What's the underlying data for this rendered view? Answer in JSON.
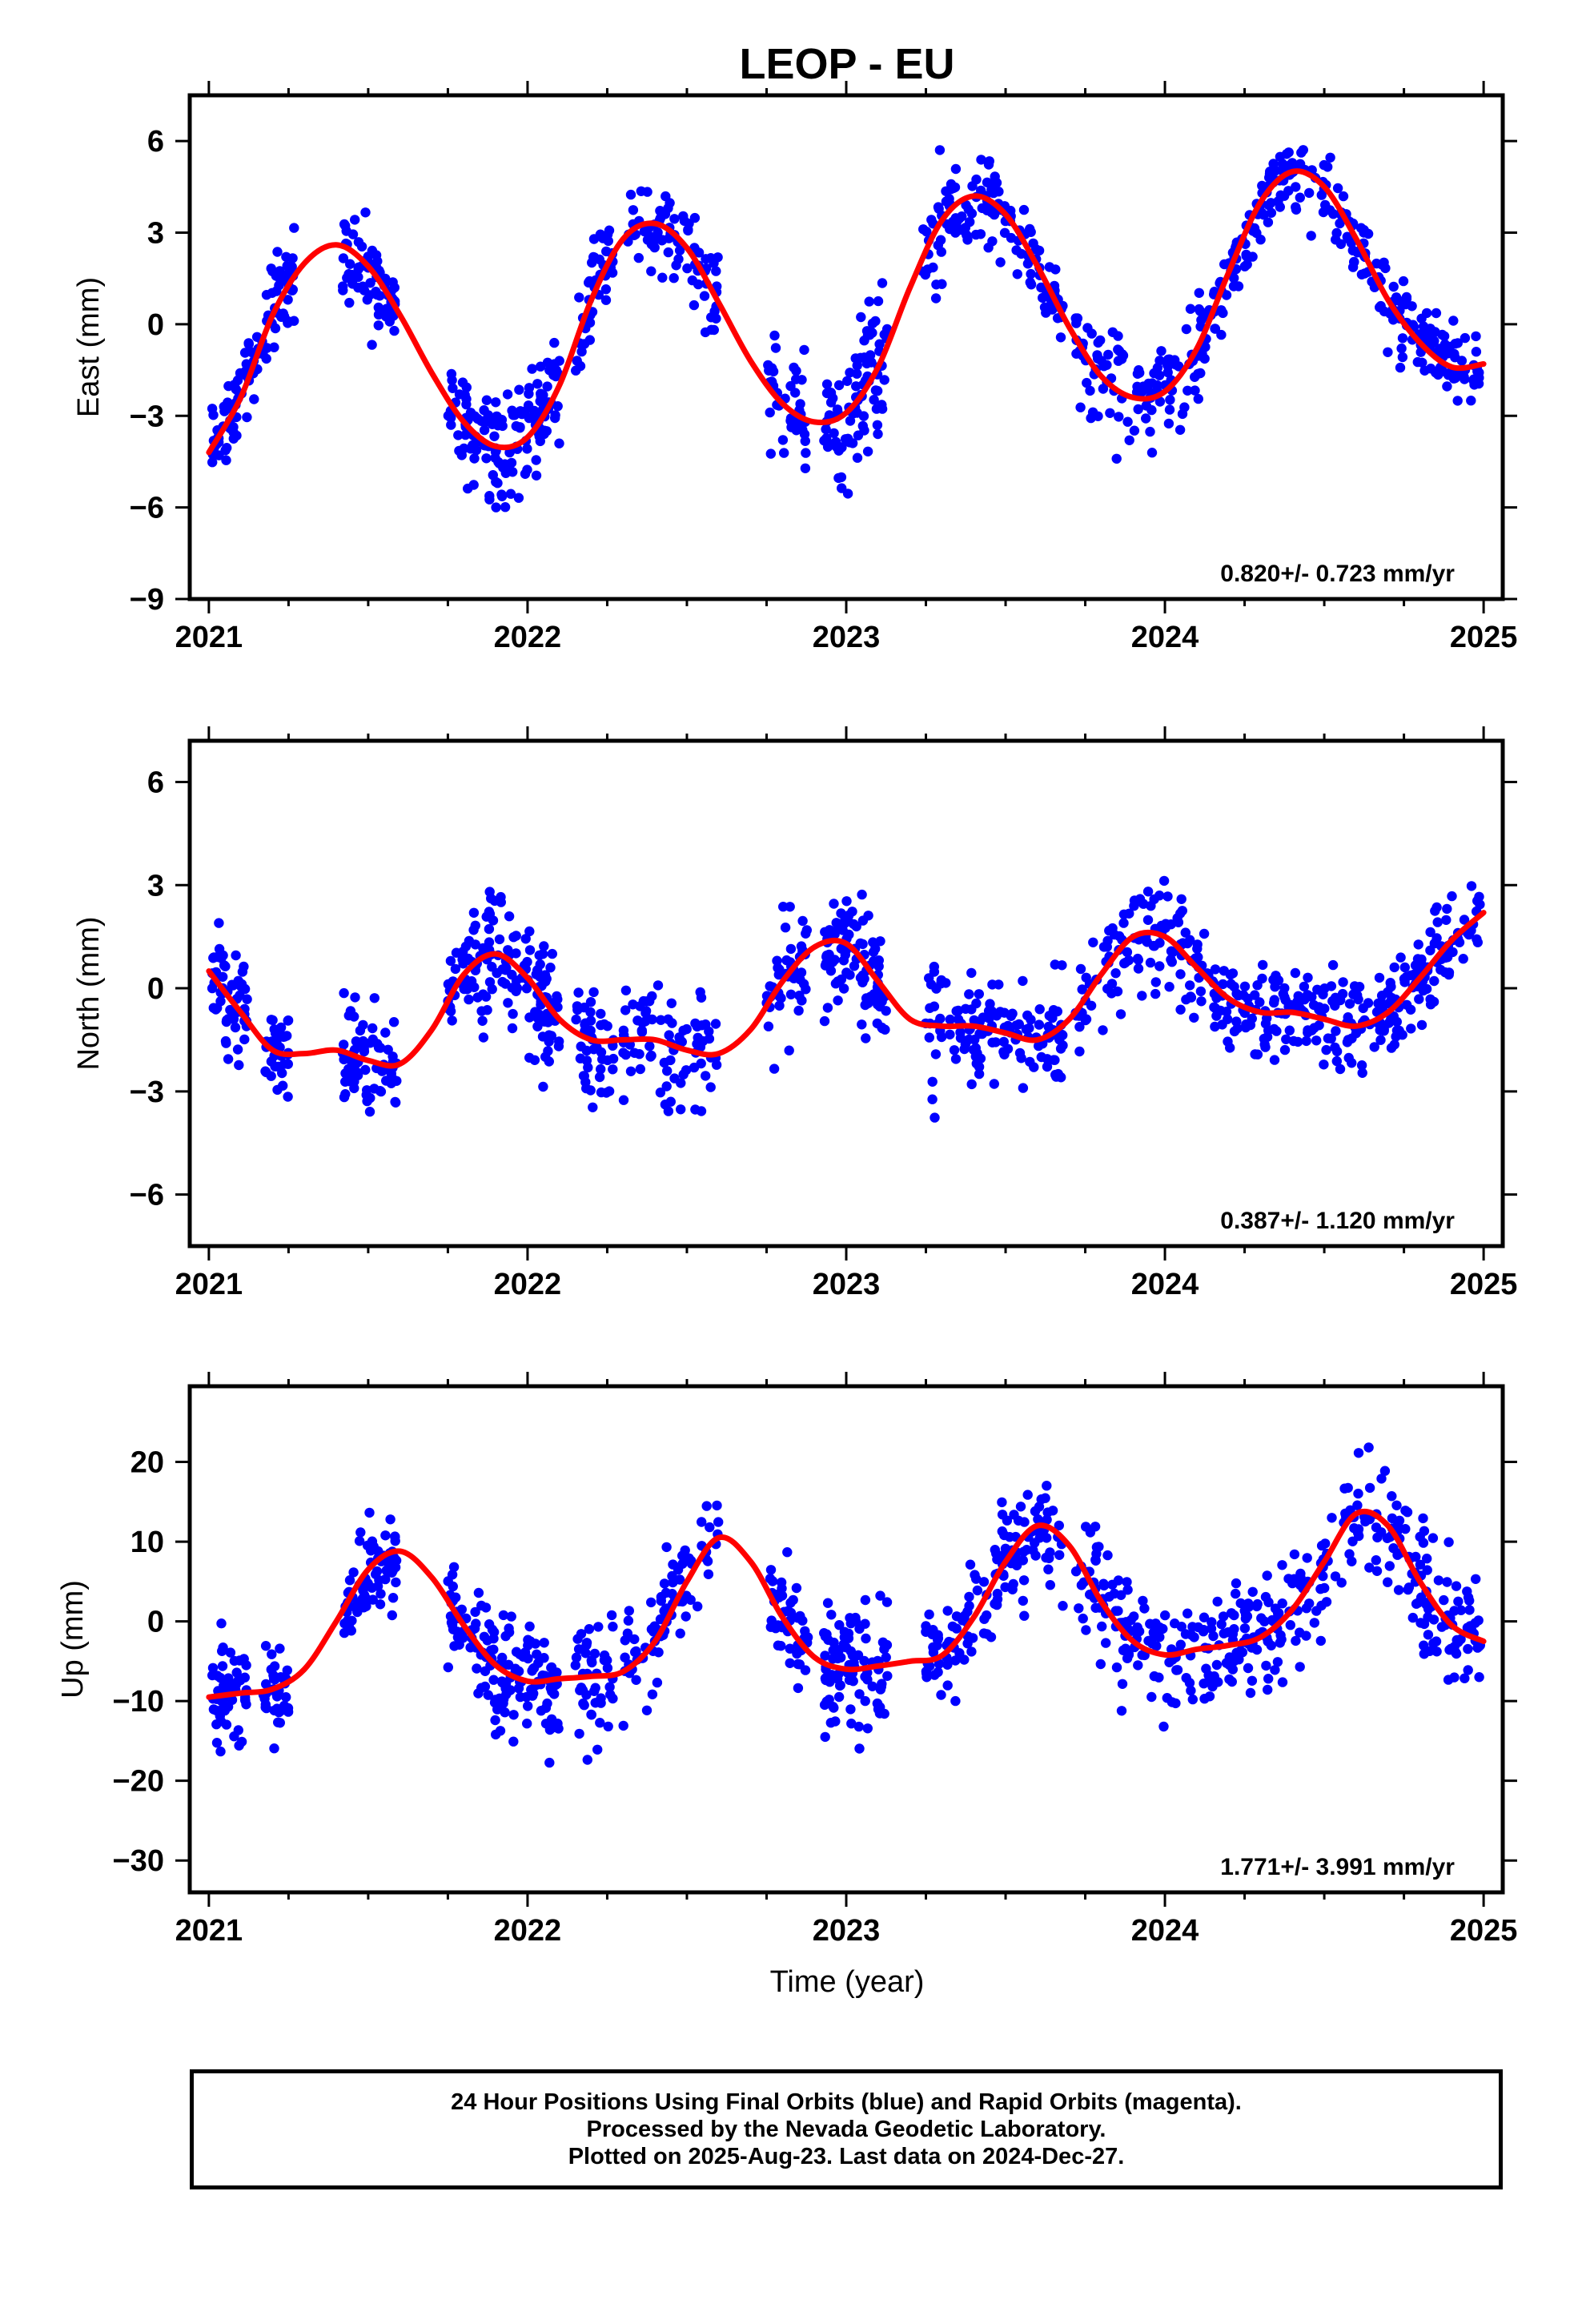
{
  "title": "LEOP - EU",
  "xlabel": "Time (year)",
  "caption": {
    "line1": "24 Hour Positions Using Final Orbits (blue) and Rapid Orbits (magenta).",
    "line2": "Processed by the Nevada Geodetic Laboratory.",
    "line3": "Plotted on 2025-Aug-23. Last data on 2024-Dec-27."
  },
  "colors": {
    "data": "#0000ff",
    "model": "#ff0000",
    "axis": "#000000"
  },
  "chart_data": [
    {
      "type": "scatter",
      "panel": "east",
      "ylabel": "East (mm)",
      "xlim": [
        2020.94,
        2025.06
      ],
      "ylim": [
        -9,
        7.5
      ],
      "xticks": [
        2021,
        2022,
        2023,
        2024,
        2025
      ],
      "yticks": [
        -9,
        -6,
        -3,
        0,
        3,
        6
      ],
      "rate_label": "0.820+/- 0.723 mm/yr",
      "model": {
        "name": "seasonal+trend",
        "color": "#ff0000",
        "x": [
          2021.0,
          2021.1,
          2021.2,
          2021.3,
          2021.4,
          2021.5,
          2021.6,
          2021.7,
          2021.8,
          2021.9,
          2022.0,
          2022.1,
          2022.2,
          2022.3,
          2022.4,
          2022.5,
          2022.6,
          2022.7,
          2022.8,
          2022.9,
          2023.0,
          2023.1,
          2023.2,
          2023.3,
          2023.4,
          2023.5,
          2023.6,
          2023.7,
          2023.8,
          2023.9,
          2024.0,
          2024.1,
          2024.2,
          2024.3,
          2024.4,
          2024.5,
          2024.6,
          2024.7,
          2024.8,
          2024.9,
          2025.0
        ],
        "y": [
          -4.2,
          -2.4,
          0.3,
          2.0,
          2.6,
          1.9,
          0.3,
          -1.6,
          -3.2,
          -4.0,
          -3.7,
          -2.0,
          0.8,
          2.8,
          3.3,
          2.5,
          0.7,
          -1.2,
          -2.6,
          -3.2,
          -2.9,
          -1.4,
          1.2,
          3.4,
          4.2,
          3.6,
          1.9,
          -0.1,
          -1.7,
          -2.4,
          -2.2,
          -0.8,
          1.7,
          4.0,
          5.0,
          4.5,
          2.8,
          0.8,
          -0.6,
          -1.4,
          -1.3
        ]
      },
      "clusters": [
        {
          "x0": 2021.01,
          "x1": 2021.17,
          "n": 60,
          "sd": 1.0
        },
        {
          "x0": 2021.18,
          "x1": 2021.27,
          "n": 40,
          "sd": 1.1
        },
        {
          "x0": 2021.42,
          "x1": 2021.59,
          "n": 70,
          "sd": 1.1
        },
        {
          "x0": 2021.75,
          "x1": 2021.83,
          "n": 30,
          "sd": 1.2
        },
        {
          "x0": 2021.83,
          "x1": 2022.1,
          "n": 120,
          "sd": 1.5
        },
        {
          "x0": 2022.15,
          "x1": 2022.27,
          "n": 45,
          "sd": 1.1
        },
        {
          "x0": 2022.3,
          "x1": 2022.6,
          "n": 80,
          "sd": 1.1
        },
        {
          "x0": 2022.75,
          "x1": 2022.88,
          "n": 45,
          "sd": 1.4
        },
        {
          "x0": 2022.93,
          "x1": 2023.13,
          "n": 95,
          "sd": 1.5
        },
        {
          "x0": 2023.24,
          "x1": 2023.3,
          "n": 20,
          "sd": 1.3
        },
        {
          "x0": 2023.31,
          "x1": 2023.68,
          "n": 110,
          "sd": 1.0
        },
        {
          "x0": 2023.72,
          "x1": 2024.14,
          "n": 120,
          "sd": 1.3
        },
        {
          "x0": 2024.14,
          "x1": 2024.66,
          "n": 150,
          "sd": 0.8
        },
        {
          "x0": 2024.66,
          "x1": 2024.99,
          "n": 110,
          "sd": 0.9
        }
      ]
    },
    {
      "type": "scatter",
      "panel": "north",
      "ylabel": "North (mm)",
      "xlim": [
        2020.94,
        2025.06
      ],
      "ylim": [
        -7.5,
        7.2
      ],
      "xticks": [
        2021,
        2022,
        2023,
        2024,
        2025
      ],
      "yticks": [
        -6,
        -3,
        0,
        3,
        6
      ],
      "rate_label": "0.387+/- 1.120 mm/yr",
      "model": {
        "name": "seasonal+trend",
        "color": "#ff0000",
        "x": [
          2021.0,
          2021.1,
          2021.2,
          2021.3,
          2021.4,
          2021.5,
          2021.6,
          2021.7,
          2021.8,
          2021.9,
          2022.0,
          2022.1,
          2022.2,
          2022.3,
          2022.4,
          2022.5,
          2022.6,
          2022.7,
          2022.8,
          2022.9,
          2023.0,
          2023.1,
          2023.2,
          2023.3,
          2023.4,
          2023.5,
          2023.6,
          2023.7,
          2023.8,
          2023.9,
          2024.0,
          2024.1,
          2024.2,
          2024.3,
          2024.4,
          2024.5,
          2024.6,
          2024.7,
          2024.8,
          2024.9,
          2025.0
        ],
        "y": [
          0.5,
          -0.7,
          -1.8,
          -1.9,
          -1.8,
          -2.1,
          -2.2,
          -1.2,
          0.4,
          1.0,
          0.3,
          -0.9,
          -1.5,
          -1.5,
          -1.5,
          -1.8,
          -1.9,
          -1.2,
          0.2,
          1.2,
          1.3,
          0.2,
          -0.9,
          -1.1,
          -1.1,
          -1.3,
          -1.5,
          -0.9,
          0.4,
          1.5,
          1.5,
          0.6,
          -0.3,
          -0.7,
          -0.7,
          -0.9,
          -1.1,
          -0.7,
          0.3,
          1.4,
          2.2
        ]
      },
      "clusters": [
        {
          "x0": 2021.01,
          "x1": 2021.12,
          "n": 55,
          "sd": 1.0
        },
        {
          "x0": 2021.17,
          "x1": 2021.25,
          "n": 35,
          "sd": 1.0
        },
        {
          "x0": 2021.42,
          "x1": 2021.59,
          "n": 70,
          "sd": 1.1
        },
        {
          "x0": 2021.75,
          "x1": 2021.83,
          "n": 30,
          "sd": 0.8
        },
        {
          "x0": 2021.83,
          "x1": 2022.1,
          "n": 120,
          "sd": 1.4
        },
        {
          "x0": 2022.15,
          "x1": 2022.27,
          "n": 45,
          "sd": 1.3
        },
        {
          "x0": 2022.3,
          "x1": 2022.6,
          "n": 80,
          "sd": 1.2
        },
        {
          "x0": 2022.75,
          "x1": 2022.88,
          "n": 45,
          "sd": 1.4
        },
        {
          "x0": 2022.93,
          "x1": 2023.13,
          "n": 95,
          "sd": 1.2
        },
        {
          "x0": 2023.24,
          "x1": 2023.3,
          "n": 20,
          "sd": 1.5
        },
        {
          "x0": 2023.31,
          "x1": 2023.68,
          "n": 110,
          "sd": 1.0
        },
        {
          "x0": 2023.72,
          "x1": 2024.14,
          "n": 120,
          "sd": 1.1
        },
        {
          "x0": 2024.14,
          "x1": 2024.66,
          "n": 150,
          "sd": 0.9
        },
        {
          "x0": 2024.66,
          "x1": 2024.99,
          "n": 110,
          "sd": 1.0
        }
      ]
    },
    {
      "type": "scatter",
      "panel": "up",
      "ylabel": "Up (mm)",
      "xlim": [
        2020.94,
        2025.06
      ],
      "ylim": [
        -34,
        29.5
      ],
      "xticks": [
        2021,
        2022,
        2023,
        2024,
        2025
      ],
      "yticks": [
        -30,
        -20,
        -10,
        0,
        10,
        20
      ],
      "rate_label": "1.771+/- 3.991 mm/yr",
      "model": {
        "name": "seasonal+trend",
        "color": "#ff0000",
        "x": [
          2021.0,
          2021.1,
          2021.2,
          2021.3,
          2021.4,
          2021.5,
          2021.6,
          2021.7,
          2021.8,
          2021.9,
          2022.0,
          2022.1,
          2022.2,
          2022.3,
          2022.4,
          2022.5,
          2022.6,
          2022.7,
          2022.8,
          2022.9,
          2023.0,
          2023.1,
          2023.2,
          2023.3,
          2023.4,
          2023.5,
          2023.6,
          2023.7,
          2023.8,
          2023.9,
          2024.0,
          2024.1,
          2024.2,
          2024.3,
          2024.4,
          2024.5,
          2024.6,
          2024.7,
          2024.8,
          2024.9,
          2025.0
        ],
        "y": [
          -9.5,
          -9.0,
          -8.5,
          -6.0,
          0.0,
          6.5,
          8.8,
          5.5,
          -0.5,
          -5.5,
          -7.5,
          -7.2,
          -6.9,
          -6.3,
          -2.5,
          5.0,
          10.5,
          7.5,
          0.5,
          -4.5,
          -6.0,
          -5.6,
          -5.0,
          -4.3,
          0.5,
          7.5,
          12.0,
          9.5,
          2.5,
          -2.5,
          -4.2,
          -3.5,
          -3.0,
          -2.0,
          1.5,
          7.5,
          13.5,
          12.0,
          5.0,
          -0.5,
          -2.5
        ]
      },
      "clusters": [
        {
          "x0": 2021.01,
          "x1": 2021.12,
          "n": 55,
          "sd": 4.5
        },
        {
          "x0": 2021.17,
          "x1": 2021.25,
          "n": 35,
          "sd": 4.0
        },
        {
          "x0": 2021.42,
          "x1": 2021.59,
          "n": 70,
          "sd": 5.0
        },
        {
          "x0": 2021.75,
          "x1": 2021.83,
          "n": 30,
          "sd": 4.0
        },
        {
          "x0": 2021.83,
          "x1": 2022.1,
          "n": 120,
          "sd": 5.0
        },
        {
          "x0": 2022.15,
          "x1": 2022.27,
          "n": 45,
          "sd": 5.5
        },
        {
          "x0": 2022.3,
          "x1": 2022.6,
          "n": 80,
          "sd": 4.5
        },
        {
          "x0": 2022.75,
          "x1": 2022.88,
          "n": 45,
          "sd": 4.0
        },
        {
          "x0": 2022.93,
          "x1": 2023.13,
          "n": 95,
          "sd": 6.0
        },
        {
          "x0": 2023.24,
          "x1": 2023.3,
          "n": 20,
          "sd": 5.0
        },
        {
          "x0": 2023.31,
          "x1": 2023.68,
          "n": 110,
          "sd": 5.0
        },
        {
          "x0": 2023.72,
          "x1": 2024.14,
          "n": 120,
          "sd": 5.5
        },
        {
          "x0": 2024.14,
          "x1": 2024.66,
          "n": 150,
          "sd": 5.0
        },
        {
          "x0": 2024.66,
          "x1": 2024.99,
          "n": 110,
          "sd": 5.5
        }
      ]
    }
  ]
}
